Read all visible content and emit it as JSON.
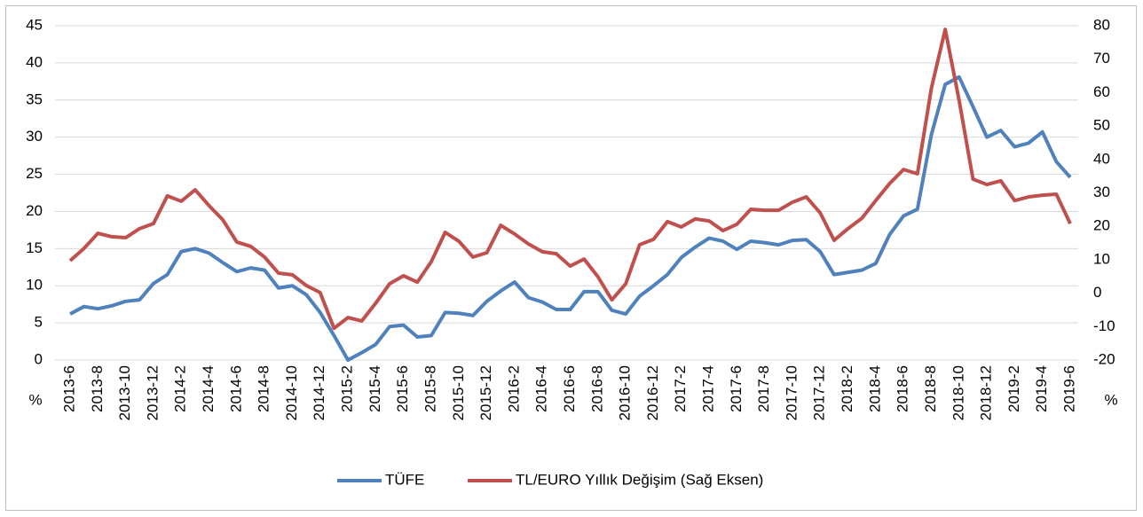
{
  "chart_data": {
    "type": "line",
    "categories": [
      "2013-6",
      null,
      "2013-8",
      null,
      "2013-10",
      null,
      "2013-12",
      null,
      "2014-2",
      null,
      "2014-4",
      null,
      "2014-6",
      null,
      "2014-8",
      null,
      "2014-10",
      null,
      "2014-12",
      null,
      "2015-2",
      null,
      "2015-4",
      null,
      "2015-6",
      null,
      "2015-8",
      null,
      "2015-10",
      null,
      "2015-12",
      null,
      "2016-2",
      null,
      "2016-4",
      null,
      "2016-6",
      null,
      "2016-8",
      null,
      "2016-10",
      null,
      "2016-12",
      null,
      "2017-2",
      null,
      "2017-4",
      null,
      "2017-6",
      null,
      "2017-8",
      null,
      "2017-10",
      null,
      "2017-12",
      null,
      "2018-2",
      null,
      "2018-4",
      null,
      "2018-6",
      null,
      "2018-8",
      null,
      "2018-10",
      null,
      "2018-12",
      null,
      "2019-2",
      null,
      "2019-4",
      null,
      "2019-6"
    ],
    "series": [
      {
        "name": "TÜFE",
        "color": "#4f81bd",
        "values": [
          6.2,
          7.2,
          6.9,
          7.3,
          7.9,
          8.1,
          10.3,
          11.5,
          14.6,
          15.0,
          14.4,
          13.1,
          11.9,
          12.4,
          12.1,
          9.7,
          10.0,
          8.8,
          6.4,
          3.3,
          0,
          1.0,
          2.1,
          4.5,
          4.7,
          3.1,
          3.3,
          6.4,
          6.3,
          6.0,
          7.9,
          9.3,
          10.5,
          8.4,
          7.8,
          6.8,
          6.8,
          9.2,
          9.2,
          6.7,
          6.2,
          8.6,
          10.0,
          11.5,
          13.8,
          15.2,
          16.4,
          16.0,
          14.9,
          16.0,
          15.8,
          15.5,
          16.1,
          16.2,
          14.6,
          11.5,
          11.8,
          12.1,
          13.0,
          16.9,
          19.4,
          20.3,
          30.3,
          37.1,
          38.1,
          34.1,
          30.0,
          30.9,
          28.7,
          29.2,
          30.7,
          26.7,
          24.6
        ]
      },
      {
        "name": "TL/EURO Yıllık Değişim (Sağ Eksen)",
        "color": "#c0504d",
        "axis": "y2",
        "values": [
          9.7,
          13.4,
          17.9,
          16.9,
          16.6,
          19.3,
          20.8,
          29.1,
          27.5,
          30.9,
          26.2,
          21.9,
          15.3,
          14.0,
          10.8,
          6.0,
          5.5,
          2.3,
          0.2,
          -10.5,
          -7.3,
          -8.3,
          -3.0,
          2.8,
          5.2,
          3.3,
          9.4,
          18.2,
          15.5,
          10.8,
          12.1,
          20.3,
          17.7,
          14.7,
          12.4,
          11.8,
          8.1,
          10.2,
          4.9,
          -2.0,
          2.8,
          14.5,
          16.1,
          21.4,
          19.8,
          22.2,
          21.6,
          18.7,
          20.6,
          25.1,
          24.8,
          24.8,
          27.2,
          28.8,
          24.0,
          15.8,
          19.3,
          22.4,
          27.7,
          32.8,
          37.0,
          35.7,
          61.2,
          78.9,
          57.7,
          34.1,
          32.5,
          33.6,
          27.7,
          28.8,
          29.3,
          29.6,
          20.8
        ]
      }
    ],
    "ylabel": "%",
    "y2label": "%",
    "ylim": [
      0,
      45
    ],
    "yticks": [
      0,
      5,
      10,
      15,
      20,
      25,
      30,
      35,
      40,
      45
    ],
    "y2lim": [
      -20,
      80
    ],
    "y2ticks": [
      -20,
      -10,
      0,
      10,
      20,
      30,
      40,
      50,
      60,
      70,
      80
    ],
    "grid": true,
    "legend": "bottom"
  }
}
